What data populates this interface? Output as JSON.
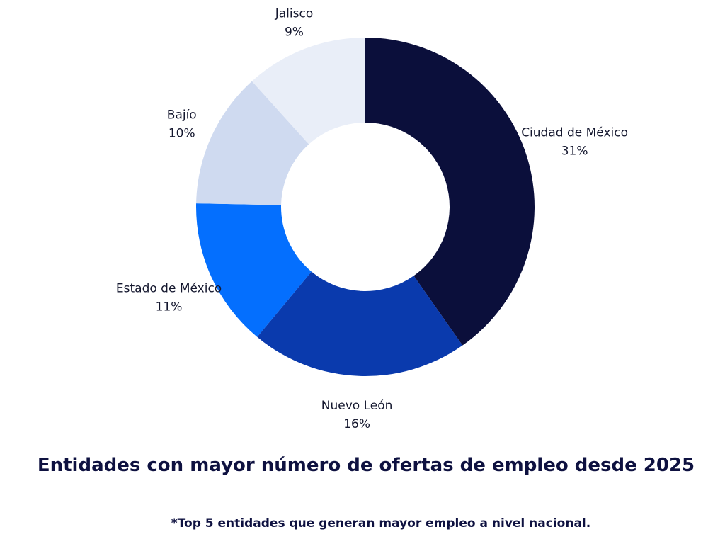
{
  "chart_data": {
    "type": "pie",
    "donut": true,
    "title": "Entidades con mayor número de ofertas de empleo desde 2025",
    "footnote": "*Top 5 entidades que generan mayor empleo a nivel nacional.",
    "slices": [
      {
        "name": "Ciudad de México",
        "value": 31,
        "label": "31%",
        "color": "#0b0f3b"
      },
      {
        "name": "Nuevo León",
        "value": 16,
        "label": "16%",
        "color": "#0a3aad"
      },
      {
        "name": "Estado de México",
        "value": 11,
        "label": "11%",
        "color": "#046ffe"
      },
      {
        "name": "Bajío",
        "value": 10,
        "label": "10%",
        "color": "#cfdaf0"
      },
      {
        "name": "Jalisco",
        "value": 9,
        "label": "9%",
        "color": "#e9eef8"
      }
    ]
  }
}
